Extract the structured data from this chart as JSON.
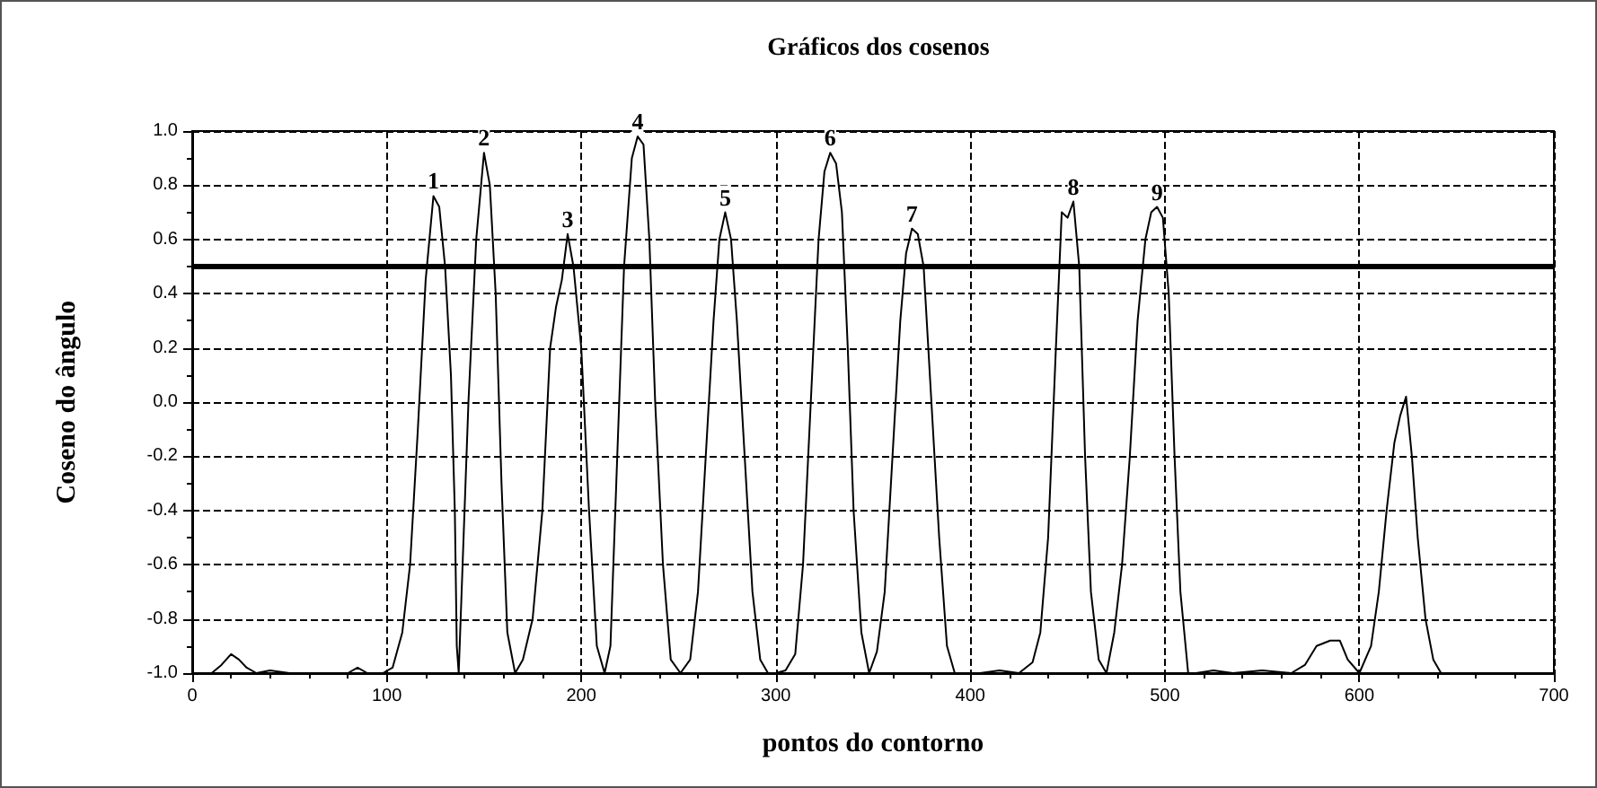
{
  "chart_data": {
    "type": "line",
    "title": "Gráficos dos cosenos",
    "xlabel": "pontos do contorno",
    "ylabel": "Coseno do ângulo",
    "xlim": [
      0,
      700
    ],
    "xticks": [
      0,
      100,
      200,
      300,
      400,
      500,
      600,
      700
    ],
    "ylim": [
      -1,
      1
    ],
    "yticks": [
      {
        "value": -1,
        "label": "-1.0"
      },
      -0.8,
      -0.6,
      -0.4,
      -0.2,
      {
        "value": 0,
        "label": "0.0"
      },
      0.2,
      0.4,
      0.6,
      0.8,
      {
        "value": 1,
        "label": "1.0"
      }
    ],
    "grid": true,
    "marker": "none",
    "line_style": "solid",
    "series": [
      {
        "color": "#000000",
        "x": [
          0,
          10,
          15,
          20,
          24,
          28,
          33,
          40,
          50,
          60,
          70,
          80,
          85,
          90,
          98,
          103,
          108,
          112,
          116,
          120,
          124,
          127,
          130,
          133,
          135,
          136,
          137,
          139,
          142,
          146,
          150,
          153,
          156,
          159,
          162,
          166,
          170,
          175,
          180,
          184,
          187,
          190,
          193,
          196,
          200,
          204,
          208,
          212,
          215,
          218,
          222,
          226,
          229,
          232,
          235,
          238,
          242,
          246,
          251,
          256,
          260,
          264,
          268,
          271,
          274,
          277,
          280,
          284,
          288,
          292,
          296,
          300,
          305,
          310,
          314,
          318,
          322,
          325,
          328,
          331,
          334,
          337,
          340,
          344,
          348,
          352,
          356,
          360,
          364,
          367,
          370,
          373,
          376,
          380,
          384,
          388,
          392,
          396,
          405,
          415,
          425,
          432,
          436,
          440,
          444,
          447,
          450,
          453,
          456,
          459,
          462,
          466,
          470,
          474,
          478,
          482,
          486,
          490,
          493,
          496,
          499,
          502,
          505,
          508,
          512,
          516,
          525,
          535,
          550,
          565,
          572,
          578,
          585,
          590,
          594,
          600,
          606,
          610,
          614,
          618,
          621,
          624,
          627,
          630,
          634,
          638,
          642
        ],
        "values": [
          -1.0,
          -1.0,
          -0.97,
          -0.93,
          -0.95,
          -0.98,
          -1.0,
          -0.99,
          -1.0,
          -1.0,
          -1.0,
          -1.0,
          -0.98,
          -1.0,
          -1.0,
          -0.98,
          -0.85,
          -0.6,
          -0.1,
          0.45,
          0.76,
          0.72,
          0.5,
          0.1,
          -0.4,
          -0.9,
          -1.0,
          -0.6,
          0.0,
          0.6,
          0.92,
          0.8,
          0.4,
          -0.3,
          -0.85,
          -1.0,
          -0.95,
          -0.8,
          -0.4,
          0.2,
          0.35,
          0.45,
          0.62,
          0.5,
          0.2,
          -0.4,
          -0.9,
          -1.0,
          -0.9,
          -0.3,
          0.5,
          0.9,
          0.98,
          0.95,
          0.6,
          0.0,
          -0.6,
          -0.95,
          -1.0,
          -0.95,
          -0.7,
          -0.2,
          0.3,
          0.6,
          0.7,
          0.6,
          0.3,
          -0.2,
          -0.7,
          -0.95,
          -1.0,
          -1.0,
          -0.99,
          -0.93,
          -0.6,
          0.0,
          0.6,
          0.85,
          0.92,
          0.88,
          0.7,
          0.2,
          -0.4,
          -0.85,
          -1.0,
          -0.92,
          -0.7,
          -0.2,
          0.3,
          0.55,
          0.64,
          0.62,
          0.5,
          0.0,
          -0.5,
          -0.9,
          -1.0,
          -1.0,
          -1.0,
          -0.99,
          -1.0,
          -0.96,
          -0.85,
          -0.5,
          0.2,
          0.7,
          0.68,
          0.74,
          0.5,
          -0.2,
          -0.7,
          -0.95,
          -1.0,
          -0.85,
          -0.6,
          -0.2,
          0.3,
          0.6,
          0.7,
          0.72,
          0.68,
          0.4,
          -0.2,
          -0.7,
          -1.0,
          -1.0,
          -0.99,
          -1.0,
          -0.99,
          -1.0,
          -0.97,
          -0.9,
          -0.88,
          -0.88,
          -0.95,
          -1.0,
          -0.9,
          -0.7,
          -0.4,
          -0.15,
          -0.05,
          0.02,
          -0.2,
          -0.5,
          -0.8,
          -0.95,
          -1.0
        ]
      }
    ],
    "ref_lines": [
      {
        "axis": "y",
        "value": 0.5,
        "color": "#000000",
        "line_style": "solid"
      }
    ],
    "annotations": [
      {
        "text": "1",
        "x": 124,
        "y": 0.76
      },
      {
        "text": "2",
        "x": 150,
        "y": 0.92
      },
      {
        "text": "3",
        "x": 193,
        "y": 0.62
      },
      {
        "text": "4",
        "x": 229,
        "y": 0.98
      },
      {
        "text": "5",
        "x": 274,
        "y": 0.7
      },
      {
        "text": "6",
        "x": 328,
        "y": 0.92
      },
      {
        "text": "7",
        "x": 370,
        "y": 0.64
      },
      {
        "text": "8",
        "x": 453,
        "y": 0.74
      },
      {
        "text": "9",
        "x": 496,
        "y": 0.72
      }
    ]
  }
}
